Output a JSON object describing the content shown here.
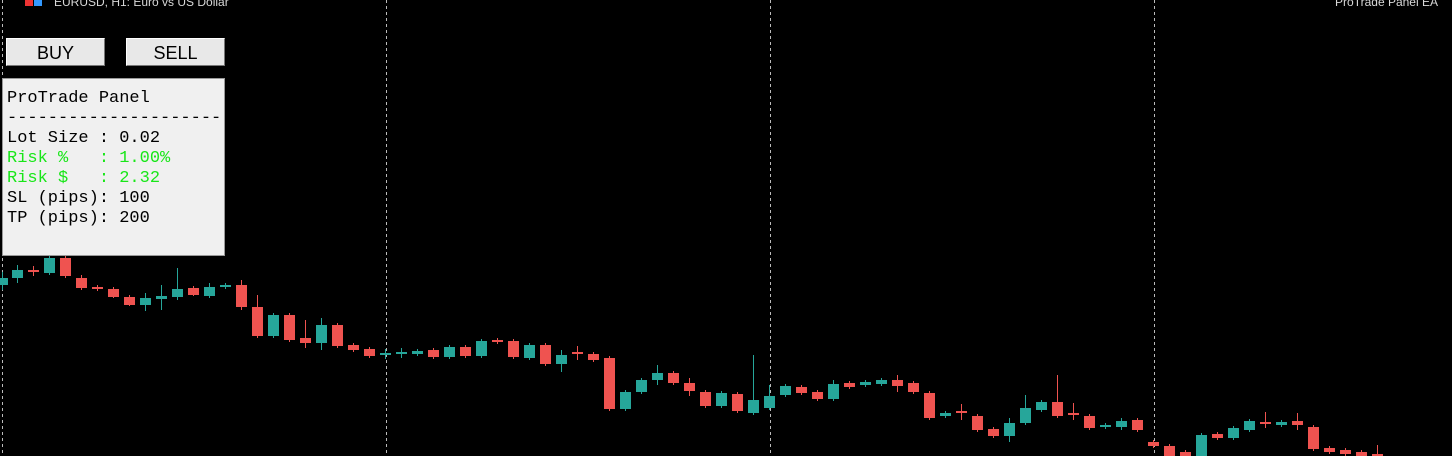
{
  "header": {
    "symbol": "EURUSD, H1:  Euro vs US Dollar",
    "ea_name": "ProTrade Panel EA"
  },
  "buttons": {
    "buy": "BUY",
    "sell": "SELL"
  },
  "panel": {
    "title": "ProTrade Panel",
    "separator": "-----------------------",
    "lines": [
      "Lot Size : 0.02",
      "Risk %   : 1.00%",
      "Risk $   : 2.32",
      "SL (pips): 100",
      "TP (pips): 200"
    ]
  }
}
